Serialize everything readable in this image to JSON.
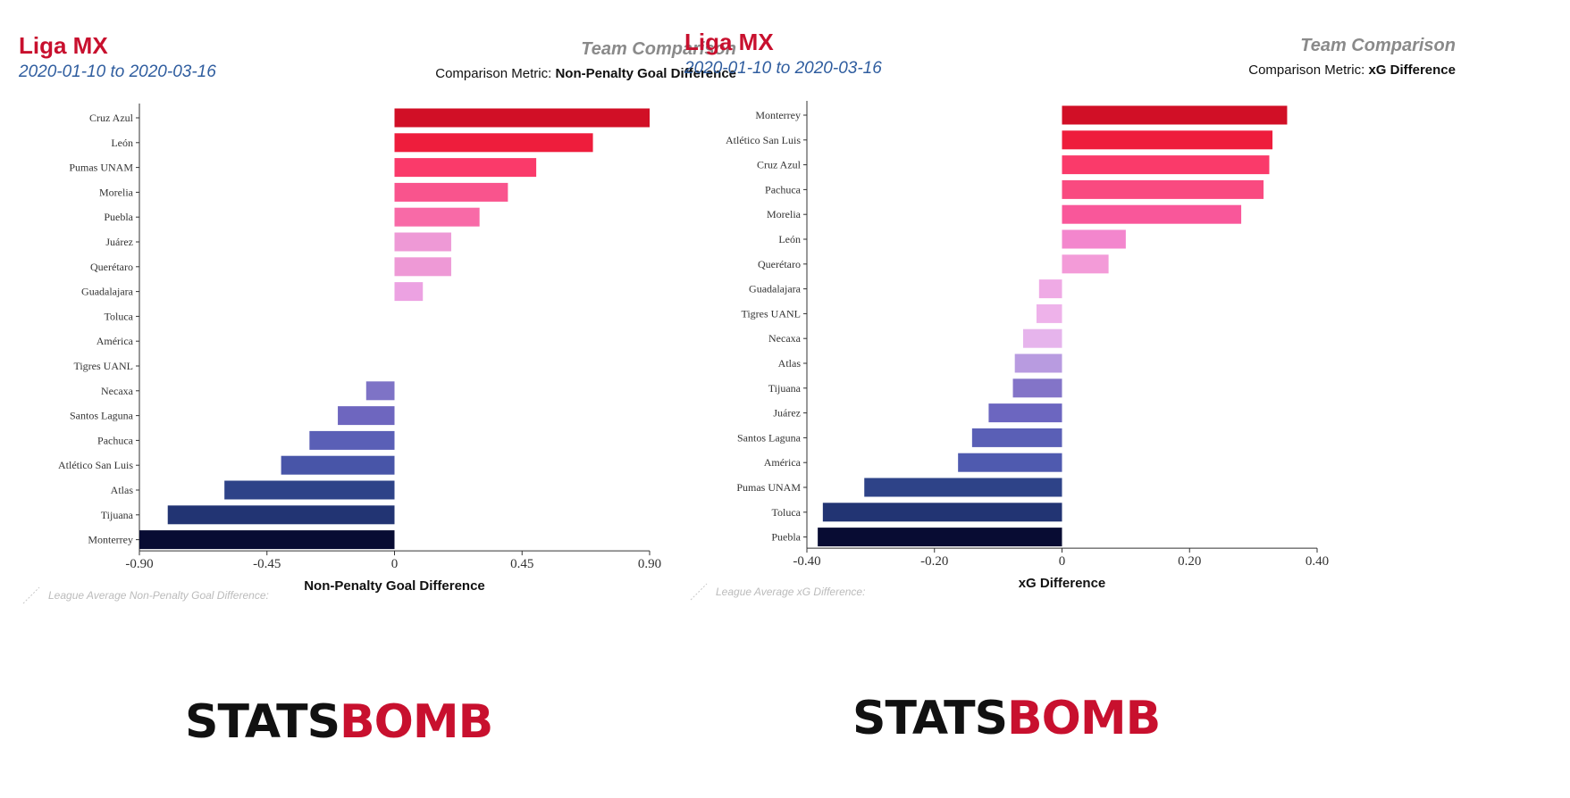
{
  "panels": [
    {
      "league": "Liga MX",
      "date_range": "2020-01-10 to 2020-03-16",
      "comparison_title": "Team Comparison",
      "comparison_metric_label": "Comparison Metric:",
      "comparison_metric_value": "Non-Penalty Goal Difference",
      "league_average_note": "League Average Non-Penalty Goal Difference:",
      "logo_left": "STATS",
      "logo_right": "BOMB"
    },
    {
      "league": "Liga MX",
      "date_range": "2020-01-10 to 2020-03-16",
      "comparison_title": "Team Comparison",
      "comparison_metric_label": "Comparison Metric:",
      "comparison_metric_value": "xG Difference",
      "league_average_note": "League Average xG Difference:",
      "logo_left": "STATS",
      "logo_right": "BOMB"
    }
  ],
  "chart_data": [
    {
      "type": "bar",
      "orientation": "horizontal",
      "xlabel": "Non-Penalty Goal Difference",
      "xlim": [
        -0.9,
        0.9
      ],
      "ticks": [
        -0.9,
        -0.45,
        0,
        0.45,
        0.9
      ],
      "tick_labels": [
        "-0.90",
        "-0.45",
        "0",
        "0.45",
        "0.90"
      ],
      "categories": [
        "Cruz Azul",
        "León",
        "Pumas UNAM",
        "Morelia",
        "Puebla",
        "Juárez",
        "Querétaro",
        "Guadalajara",
        "Toluca",
        "América",
        "Tigres UANL",
        "Necaxa",
        "Santos Laguna",
        "Pachuca",
        "Atlético San Luis",
        "Atlas",
        "Tijuana",
        "Monterrey"
      ],
      "values": [
        0.9,
        0.7,
        0.5,
        0.4,
        0.3,
        0.2,
        0.2,
        0.1,
        0,
        0,
        0,
        -0.1,
        -0.2,
        -0.3,
        -0.4,
        -0.6,
        -0.8,
        -0.9
      ],
      "colors": [
        "#d10f26",
        "#ee1d3c",
        "#fa3a6a",
        "#f9548d",
        "#f86aa7",
        "#ee99d6",
        "#ee99d6",
        "#eca2e2",
        "#ffffff",
        "#ffffff",
        "#ffffff",
        "#7e73c6",
        "#6e66bf",
        "#5a5fb6",
        "#4855a8",
        "#2e4388",
        "#223473",
        "#080c33"
      ]
    },
    {
      "type": "bar",
      "orientation": "horizontal",
      "xlabel": "xG Difference",
      "xlim": [
        -0.4,
        0.4
      ],
      "ticks": [
        -0.4,
        -0.2,
        0,
        0.2,
        0.4
      ],
      "tick_labels": [
        "-0.40",
        "-0.20",
        "0",
        "0.20",
        "0.40"
      ],
      "categories": [
        "Monterrey",
        "Atlético San Luis",
        "Cruz Azul",
        "Pachuca",
        "Morelia",
        "León",
        "Querétaro",
        "Guadalajara",
        "Tigres UANL",
        "Necaxa",
        "Atlas",
        "Tijuana",
        "Juárez",
        "Santos Laguna",
        "América",
        "Pumas UNAM",
        "Toluca",
        "Puebla"
      ],
      "values": [
        0.353,
        0.33,
        0.325,
        0.316,
        0.281,
        0.1,
        0.073,
        -0.036,
        -0.04,
        -0.061,
        -0.074,
        -0.077,
        -0.115,
        -0.141,
        -0.163,
        -0.31,
        -0.375,
        -0.383
      ],
      "colors": [
        "#d10f26",
        "#ee1d3c",
        "#fa3a6a",
        "#f94a80",
        "#f9579a",
        "#f386cd",
        "#f39bd8",
        "#efaae5",
        "#eeb2ea",
        "#e6b4ec",
        "#b89be0",
        "#8374c8",
        "#6c66c0",
        "#5a5fb6",
        "#4f5aaf",
        "#2e4388",
        "#223473",
        "#080c33"
      ]
    }
  ]
}
